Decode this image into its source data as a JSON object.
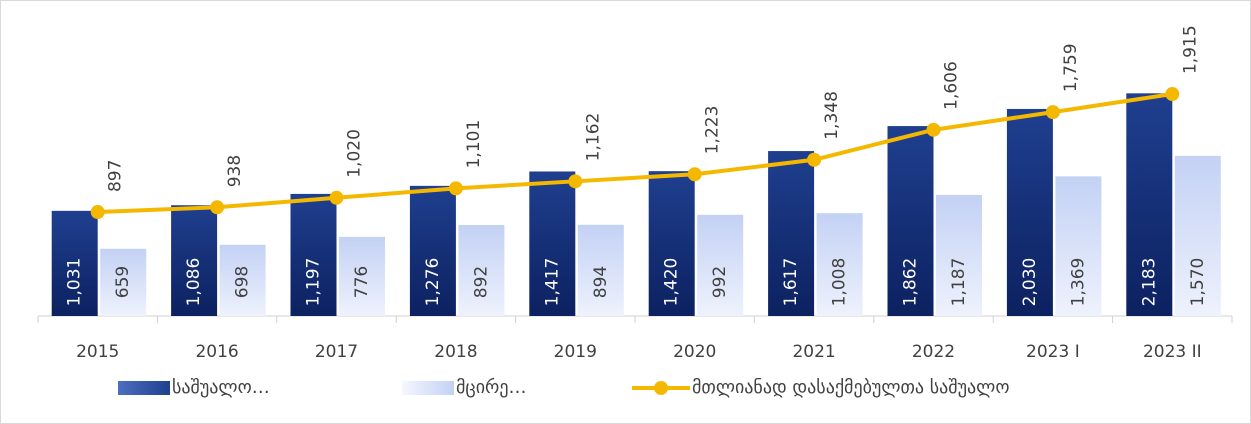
{
  "chart_data": {
    "type": "bar",
    "categories": [
      "2015",
      "2016",
      "2017",
      "2018",
      "2019",
      "2020",
      "2021",
      "2022",
      "2023 I",
      "2023 II"
    ],
    "series": [
      {
        "name": "საშუალო…",
        "color": "#1f3f8f",
        "values": [
          1031,
          1086,
          1197,
          1276,
          1417,
          1420,
          1617,
          1862,
          2030,
          2183
        ],
        "value_labels": [
          "1,031",
          "1,086",
          "1,197",
          "1,276",
          "1,417",
          "1,420",
          "1,617",
          "1,862",
          "2,030",
          "2,183"
        ]
      },
      {
        "name": "მცირე…",
        "color": "#c3d1f4",
        "values": [
          659,
          698,
          776,
          892,
          894,
          992,
          1008,
          1187,
          1369,
          1570
        ],
        "value_labels": [
          "659",
          "698",
          "776",
          "892",
          "894",
          "992",
          "1,008",
          "1,187",
          "1,369",
          "1,570"
        ]
      },
      {
        "name": "მთლიანად დასაქმებულთა საშუალო",
        "color": "#f5b800",
        "type": "line",
        "axis": "y2",
        "values": [
          897,
          938,
          1020,
          1101,
          1162,
          1223,
          1348,
          1606,
          1759,
          1915
        ],
        "value_labels": [
          "897",
          "938",
          "1,020",
          "1,101",
          "1,162",
          "1,223",
          "1,348",
          "1,606",
          "1,759",
          "1,915"
        ]
      }
    ],
    "ylim": [
      0,
      3000
    ],
    "y2lim": [
      0,
      2640
    ],
    "legend": "bottom"
  }
}
